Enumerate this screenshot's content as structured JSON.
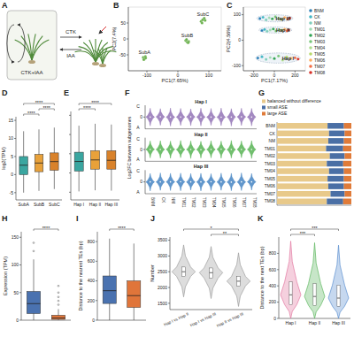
{
  "chart_data": [
    {
      "type": "diagram",
      "panel": "A",
      "annotations": [
        "CTK+IAA",
        "CTK",
        "IAA"
      ]
    },
    {
      "type": "scatter",
      "panel": "B",
      "xlabel": "PC1(7.65%)",
      "ylabel": "PC2(7.4%)",
      "xlim": [
        -160,
        140
      ],
      "xticks": [
        -100,
        0,
        100
      ],
      "ylim": [
        -100,
        100
      ],
      "yticks": [
        -50,
        0,
        50
      ],
      "series": [
        {
          "name": "SubA",
          "color": "#6ab04c",
          "x": [
            -112,
            -108,
            -105,
            -110,
            -104
          ],
          "y": [
            -58,
            -62,
            -55,
            -65,
            -60
          ]
        },
        {
          "name": "SubB",
          "color": "#6ab04c",
          "x": [
            25,
            30,
            35,
            28,
            33
          ],
          "y": [
            -5,
            -10,
            -8,
            -2,
            -12
          ]
        },
        {
          "name": "SubC",
          "color": "#6ab04c",
          "x": [
            75,
            80,
            85,
            78,
            88
          ],
          "y": [
            55,
            60,
            65,
            50,
            58
          ]
        }
      ]
    },
    {
      "type": "scatter",
      "panel": "C",
      "xlabel": "PC1(7.17%)",
      "ylabel": "PC2(4.56%)",
      "legend": "right",
      "xlim": [
        -300,
        300
      ],
      "xticks": [
        -200,
        0,
        200
      ],
      "ylim": [
        -120,
        130
      ],
      "yticks": [
        -100,
        0,
        100
      ],
      "groups": [
        {
          "label": "Hap III",
          "cx": 5,
          "cy": 86,
          "rx": 175,
          "ry": 14
        },
        {
          "label": "Hap II",
          "cx": 10,
          "cy": 40,
          "rx": 160,
          "ry": 12
        },
        {
          "label": "Hap I",
          "cx": 35,
          "cy": -70,
          "rx": 215,
          "ry": 20
        }
      ],
      "series": [
        {
          "name": "BNM",
          "color": "#2c7fb8",
          "x": [
            -140,
            -120,
            -160
          ],
          "y": [
            85,
            38,
            -70
          ]
        },
        {
          "name": "CK",
          "color": "#41b6c4",
          "x": [
            -110,
            -95,
            -120
          ],
          "y": [
            90,
            42,
            -65
          ]
        },
        {
          "name": "NM",
          "color": "#7fcdbb",
          "x": [
            -80,
            -70,
            -80
          ],
          "y": [
            80,
            35,
            -75
          ]
        },
        {
          "name": "TM01",
          "color": "#a1dab4",
          "x": [
            -50,
            -40,
            -40
          ],
          "y": [
            88,
            40,
            -68
          ]
        },
        {
          "name": "TM02",
          "color": "#31a354",
          "x": [
            -20,
            -10,
            0
          ],
          "y": [
            84,
            44,
            -72
          ]
        },
        {
          "name": "TM03",
          "color": "#78c679",
          "x": [
            10,
            15,
            40
          ],
          "y": [
            92,
            36,
            -62
          ]
        },
        {
          "name": "TM04",
          "color": "#addd8e",
          "x": [
            40,
            45,
            80
          ],
          "y": [
            86,
            41,
            -78
          ]
        },
        {
          "name": "TM05",
          "color": "#b8d96a",
          "x": [
            70,
            75,
            120
          ],
          "y": [
            82,
            39,
            -66
          ]
        },
        {
          "name": "TM06",
          "color": "#fdae61",
          "x": [
            100,
            100,
            160
          ],
          "y": [
            89,
            43,
            -71
          ]
        },
        {
          "name": "TM07",
          "color": "#f46d43",
          "x": [
            130,
            120,
            200
          ],
          "y": [
            83,
            37,
            -69
          ]
        },
        {
          "name": "TM08",
          "color": "#d73027",
          "x": [
            150,
            140,
            230
          ],
          "y": [
            87,
            40,
            -74
          ]
        }
      ]
    },
    {
      "type": "box",
      "panel": "D",
      "ylabel": "log2(TPM)",
      "categories": [
        "SubA",
        "SubB",
        "SubC"
      ],
      "colors": [
        "#3aa6a0",
        "#e8a13a",
        "#d9822b"
      ],
      "ylim": [
        -7,
        16
      ],
      "yticks": [
        -5,
        0,
        5,
        10,
        15
      ],
      "min": [
        -5,
        -4.5,
        -4
      ],
      "q1": [
        0,
        0.8,
        1.2
      ],
      "median": [
        2.6,
        3.2,
        3.6
      ],
      "q3": [
        5,
        5.6,
        6
      ],
      "max": [
        12,
        12.5,
        13
      ],
      "comparisons": [
        {
          "pair": [
            0,
            1
          ],
          "label": "****"
        },
        {
          "pair": [
            1,
            2
          ],
          "label": "****"
        },
        {
          "pair": [
            0,
            2
          ],
          "label": "****"
        }
      ]
    },
    {
      "type": "box",
      "panel": "E",
      "categories": [
        "Hap I",
        "Hap II",
        "Hap III"
      ],
      "tick_labels": "x",
      "colors": [
        "#3aa6a0",
        "#e8a13a",
        "#d9822b"
      ],
      "ylim": [
        -7,
        16
      ],
      "yticks": [
        -5,
        0,
        5,
        10,
        15
      ],
      "min": [
        -4.8,
        -4.5,
        -4.6
      ],
      "q1": [
        0.5,
        1,
        1
      ],
      "median": [
        3,
        3.4,
        3.3
      ],
      "q3": [
        5.4,
        5.8,
        5.8
      ],
      "max": [
        12.3,
        12.8,
        12.6
      ],
      "comparisons": [
        {
          "pair": [
            0,
            1
          ],
          "label": "****"
        },
        {
          "pair": [
            0,
            2
          ],
          "label": "****"
        }
      ]
    },
    {
      "type": "violin",
      "panel": "F",
      "ylabel": "Log2FC between subgenomes",
      "annotations": [
        "C",
        "A"
      ],
      "categories": [
        "BNM",
        "CK",
        "NM",
        "TM01",
        "TM02",
        "TM03",
        "TM04",
        "TM05",
        "TM06",
        "TM07",
        "TM08"
      ],
      "ylim": [
        -6,
        6
      ],
      "yticks": [
        0
      ],
      "series": [
        {
          "name": "Hap I",
          "color": "#8c6bb1",
          "min": [
            -4.5,
            -4.2,
            -4.6,
            -4.3,
            -4.4,
            -4.5,
            -4.2,
            -4.4,
            -4.6,
            -4.3,
            -4.5
          ],
          "q1": [
            -0.8,
            -0.7,
            -0.9,
            -0.8,
            -0.8,
            -0.7,
            -0.9,
            -0.8,
            -0.8,
            -0.7,
            -0.8
          ],
          "median": [
            0,
            0.1,
            0,
            0,
            0.1,
            0,
            0,
            -0.1,
            0,
            0.1,
            0
          ],
          "q3": [
            0.8,
            0.9,
            0.7,
            0.8,
            0.9,
            0.8,
            0.7,
            0.8,
            0.9,
            0.8,
            0.8
          ],
          "max": [
            4.5,
            4.3,
            4.6,
            4.4,
            4.2,
            4.5,
            4.4,
            4.6,
            4.3,
            4.5,
            4.4
          ]
        },
        {
          "name": "Hap II",
          "color": "#4daf4a",
          "min": [
            -4.3,
            -4.4,
            -4.5,
            -4.2,
            -4.6,
            -4.4,
            -4.3,
            -4.5,
            -4.4,
            -4.2,
            -4.6
          ],
          "q1": [
            -0.7,
            -0.8,
            -0.8,
            -0.9,
            -0.7,
            -0.8,
            -0.8,
            -0.7,
            -0.9,
            -0.8,
            -0.8
          ],
          "median": [
            0,
            0,
            0.1,
            0,
            0,
            -0.1,
            0,
            0.1,
            0,
            0,
            0
          ],
          "q3": [
            0.9,
            0.8,
            0.8,
            0.7,
            0.8,
            0.9,
            0.8,
            0.8,
            0.7,
            0.9,
            0.8
          ],
          "max": [
            4.4,
            4.5,
            4.3,
            4.6,
            4.4,
            4.2,
            4.5,
            4.3,
            4.6,
            4.4,
            4.5
          ]
        },
        {
          "name": "Hap III",
          "color": "#3b7dbf",
          "min": [
            -4.6,
            -4.3,
            -4.4,
            -4.5,
            -4.2,
            -4.6,
            -4.4,
            -4.3,
            -4.5,
            -4.4,
            -4.2
          ],
          "q1": [
            -0.8,
            -0.8,
            -0.7,
            -0.8,
            -0.9,
            -0.8,
            -0.7,
            -0.8,
            -0.8,
            -0.9,
            -0.7
          ],
          "median": [
            0,
            0,
            0,
            0.1,
            0,
            0,
            0.1,
            0,
            -0.1,
            0,
            0
          ],
          "q3": [
            0.8,
            0.7,
            0.9,
            0.8,
            0.8,
            0.7,
            0.9,
            0.8,
            0.8,
            0.8,
            0.9
          ],
          "max": [
            4.3,
            4.6,
            4.4,
            4.5,
            4.3,
            4.4,
            4.2,
            4.5,
            4.4,
            4.6,
            4.3
          ]
        }
      ]
    },
    {
      "type": "bar",
      "panel": "G",
      "orientation": "horizontal",
      "stacked": true,
      "tick_labels": "y",
      "legend": "top",
      "categories": [
        "BNM",
        "CK",
        "NM",
        "TM01",
        "TM02",
        "TM03",
        "TM04",
        "TM05",
        "TM06",
        "TM07",
        "TM08"
      ],
      "xlim": [
        0,
        100
      ],
      "series": [
        {
          "name": "balanced without difference",
          "color": "#e8c98a",
          "values": [
            68,
            70,
            69,
            66,
            71,
            67,
            70,
            68,
            69,
            72,
            67
          ]
        },
        {
          "name": "small ASE",
          "color": "#4a6fa5",
          "values": [
            22,
            21,
            21,
            23,
            20,
            22,
            20,
            22,
            21,
            19,
            22
          ]
        },
        {
          "name": "large ASE",
          "color": "#e07b39",
          "values": [
            10,
            9,
            10,
            11,
            9,
            11,
            10,
            10,
            10,
            9,
            11
          ]
        }
      ]
    },
    {
      "type": "box",
      "panel": "H",
      "ylabel": "Expression (TPM)",
      "categories": [
        null,
        null
      ],
      "colors": [
        "#4a72b0",
        "#e0753a"
      ],
      "ylim": [
        0,
        160
      ],
      "yticks": [
        0,
        50,
        100,
        150
      ],
      "min": [
        0,
        0
      ],
      "q1": [
        12,
        1.5
      ],
      "median": [
        30,
        4
      ],
      "q3": [
        52,
        9
      ],
      "max": [
        110,
        20
      ],
      "outliers": [
        [
          125,
          140
        ],
        [
          28,
          35,
          42,
          50,
          62
        ]
      ],
      "comparisons": [
        {
          "pair": [
            0,
            1
          ],
          "label": "****"
        }
      ]
    },
    {
      "type": "box",
      "panel": "I",
      "ylabel": "Distance to the nearest TEs (bp)",
      "categories": [
        null,
        null
      ],
      "colors": [
        "#4a72b0",
        "#e0753a"
      ],
      "ylim": [
        0,
        900
      ],
      "yticks": [
        0,
        200,
        400,
        600,
        800
      ],
      "min": [
        0,
        0
      ],
      "q1": [
        170,
        130
      ],
      "median": [
        300,
        250
      ],
      "q3": [
        450,
        400
      ],
      "max": [
        830,
        780
      ],
      "comparisons": [
        {
          "pair": [
            0,
            1
          ],
          "label": "****"
        }
      ]
    },
    {
      "type": "violin",
      "panel": "J",
      "ylabel": "Number",
      "categories": [
        "Hap I vs Hap II",
        "Hap I vs Hap III",
        "Hap II vs Hap III"
      ],
      "color": "#9e9e9e",
      "ylim": [
        1300,
        3600
      ],
      "yticks": [
        1500,
        2000,
        2500,
        3000,
        3500
      ],
      "min": [
        1700,
        1650,
        1400
      ],
      "q1": [
        2350,
        2300,
        2050
      ],
      "median": [
        2500,
        2470,
        2200
      ],
      "q3": [
        2650,
        2620,
        2350
      ],
      "max": [
        3350,
        3300,
        3100
      ],
      "comparisons": [
        {
          "pair": [
            1,
            2
          ],
          "label": "**"
        },
        {
          "pair": [
            0,
            2
          ],
          "label": "*"
        }
      ]
    },
    {
      "type": "violin",
      "panel": "K",
      "ylabel": "Distance to the next TEs (bp)",
      "categories": [
        "Hap I",
        "Hap II",
        "Hap III"
      ],
      "colors": [
        "#e377a0",
        "#5fb860",
        "#5b8fd0"
      ],
      "ylim": [
        0,
        1000
      ],
      "yticks": [
        0,
        200,
        400,
        600,
        800
      ],
      "min": [
        0,
        0,
        0
      ],
      "q1": [
        170,
        160,
        150
      ],
      "median": [
        290,
        270,
        250
      ],
      "q3": [
        450,
        430,
        410
      ],
      "max": [
        950,
        930,
        900
      ],
      "comparisons": [
        {
          "pair": [
            0,
            1
          ],
          "label": "***"
        },
        {
          "pair": [
            0,
            2
          ],
          "label": "***"
        }
      ]
    }
  ]
}
